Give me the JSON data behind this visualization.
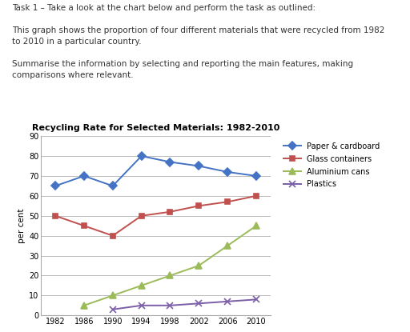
{
  "title": "Recycling Rate for Selected Materials: 1982-2010",
  "ylabel": "per cent",
  "years": [
    1982,
    1986,
    1990,
    1994,
    1998,
    2002,
    2006,
    2010
  ],
  "series": [
    {
      "label": "Paper & cardboard",
      "values": [
        65,
        70,
        65,
        80,
        77,
        75,
        72,
        70
      ],
      "color": "#4472C4",
      "marker": "D",
      "markersize": 5,
      "linewidth": 1.4
    },
    {
      "label": "Glass containers",
      "values": [
        50,
        45,
        40,
        50,
        52,
        55,
        57,
        60
      ],
      "color": "#C0504D",
      "marker": "s",
      "markersize": 5,
      "linewidth": 1.4
    },
    {
      "label": "Aluminium cans",
      "values": [
        null,
        5,
        10,
        15,
        20,
        25,
        35,
        45
      ],
      "color": "#9BBB59",
      "marker": "^",
      "markersize": 6,
      "linewidth": 1.4
    },
    {
      "label": "Plastics",
      "values": [
        null,
        null,
        3,
        5,
        5,
        6,
        7,
        8
      ],
      "color": "#7B5EA7",
      "marker": "x",
      "markersize": 6,
      "linewidth": 1.4
    }
  ],
  "ylim": [
    0,
    90
  ],
  "yticks": [
    0,
    10,
    20,
    30,
    40,
    50,
    60,
    70,
    80,
    90
  ],
  "xticks": [
    1982,
    1986,
    1990,
    1994,
    1998,
    2002,
    2006,
    2010
  ],
  "background_color": "#FFFFFF",
  "grid_color": "#BBBBBB",
  "text_lines": [
    "Task 1 – Take a look at the chart below and perform the task as outlined:",
    "",
    "This graph shows the proportion of four different materials that were recycled from 1982",
    "to 2010 in a particular country.",
    "",
    "Summarise the information by selecting and reporting the main features, making",
    "comparisons where relevant."
  ]
}
